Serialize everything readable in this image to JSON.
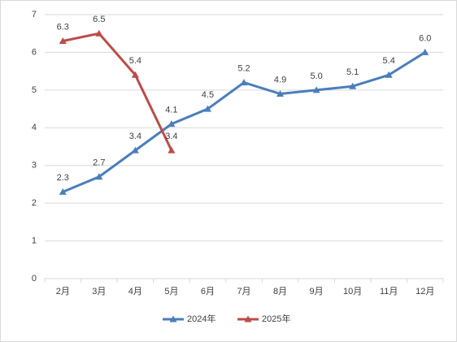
{
  "chart_data": {
    "type": "line",
    "categories": [
      "2月",
      "3月",
      "4月",
      "5月",
      "6月",
      "7月",
      "8月",
      "9月",
      "10月",
      "11月",
      "12月"
    ],
    "series": [
      {
        "name": "2024年",
        "color": "#4a7ebb",
        "values": [
          2.3,
          2.7,
          3.4,
          4.1,
          4.5,
          5.2,
          4.9,
          5,
          5.1,
          5.4,
          6
        ],
        "value_labels": [
          "2.3",
          "2.7",
          "3.4",
          "4.1",
          "4.5",
          "5.2",
          "4.9",
          "5.0",
          "5.1",
          "5.4",
          "6.0"
        ]
      },
      {
        "name": "2025年",
        "color": "#be4b48",
        "values": [
          6.3,
          6.5,
          5.4,
          3.4,
          null,
          null,
          null,
          null,
          null,
          null,
          null
        ],
        "value_labels": [
          "6.3",
          "6.5",
          "5.4",
          "3.4",
          null,
          null,
          null,
          null,
          null,
          null,
          null
        ]
      }
    ],
    "ylim": [
      0,
      7
    ],
    "yticks": [
      0,
      1,
      2,
      3,
      4,
      5,
      6,
      7
    ],
    "grid": true,
    "legend": "bottom"
  }
}
